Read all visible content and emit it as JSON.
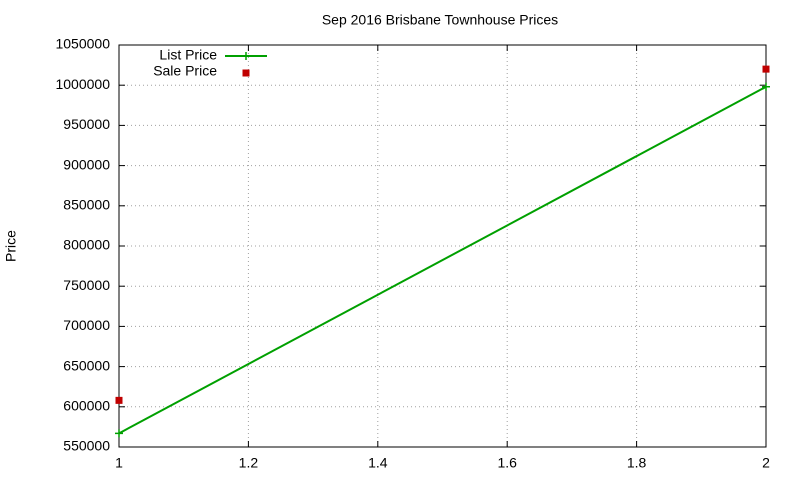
{
  "chart_data": {
    "type": "line",
    "title": "Sep 2016 Brisbane Townhouse Prices",
    "y_label": "Price",
    "x": [
      1,
      2
    ],
    "series": [
      {
        "name": "List Price",
        "color": "#00a000",
        "style": "linespoints",
        "values": [
          567000,
          998000
        ]
      },
      {
        "name": "Sale Price",
        "color": "#c00000",
        "style": "points",
        "values": [
          608000,
          1020000
        ]
      }
    ],
    "xlim": [
      1,
      2
    ],
    "xticks": [
      1,
      1.2,
      1.4,
      1.6,
      1.8,
      2
    ],
    "ylim": [
      550000,
      1050000
    ],
    "yticks": [
      550000,
      600000,
      650000,
      700000,
      750000,
      800000,
      850000,
      900000,
      950000,
      1000000,
      1050000
    ],
    "grid": true,
    "legend": "top-left"
  }
}
